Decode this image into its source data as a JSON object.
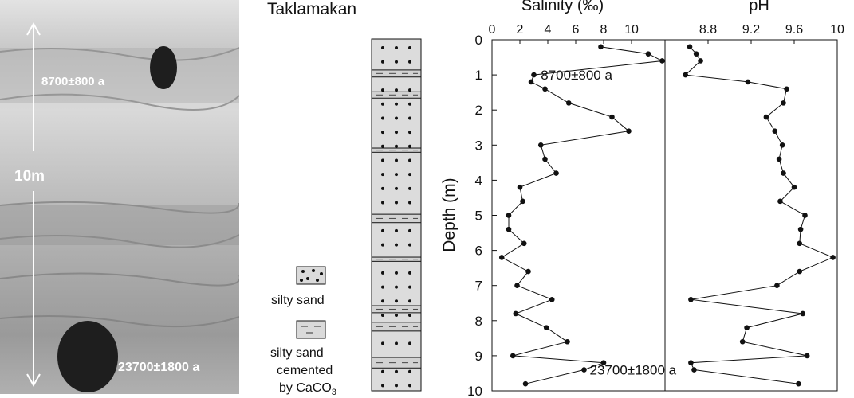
{
  "photo": {
    "label_top": "8700±800 a",
    "label_bottom": "23700±1800 a",
    "scale_label": "10m"
  },
  "site": {
    "title": "Taklamakan"
  },
  "legend": {
    "silty_sand": "silty sand",
    "cemented_line1": "silty sand",
    "cemented_line2": "cemented",
    "cemented_line3_prefix": "by CaCO",
    "cemented_line3_sub": "3"
  },
  "stratigraphy": {
    "depth_range": [
      0,
      10
    ],
    "cemented_layers": [
      [
        0.88,
        1.08
      ],
      [
        1.5,
        1.68
      ],
      [
        3.1,
        3.22
      ],
      [
        4.98,
        5.22
      ],
      [
        6.2,
        6.32
      ],
      [
        7.58,
        7.78
      ],
      [
        8.05,
        8.3
      ],
      [
        9.05,
        9.35
      ]
    ]
  },
  "chart_data": [
    {
      "type": "line",
      "title": "Salinity (‰)",
      "ylabel": "Depth (m)",
      "xlim": [
        0,
        12.4
      ],
      "ylim": [
        10,
        0
      ],
      "x_ticks": [
        0,
        2,
        4,
        6,
        8,
        10
      ],
      "y_ticks": [
        0,
        1,
        2,
        3,
        4,
        5,
        6,
        7,
        8,
        9,
        10
      ],
      "points": [
        {
          "x": 7.8,
          "y": 0.2
        },
        {
          "x": 11.2,
          "y": 0.4
        },
        {
          "x": 12.2,
          "y": 0.6
        },
        {
          "x": 3.0,
          "y": 1.0
        },
        {
          "x": 2.8,
          "y": 1.2
        },
        {
          "x": 3.8,
          "y": 1.4
        },
        {
          "x": 5.5,
          "y": 1.8
        },
        {
          "x": 8.6,
          "y": 2.2
        },
        {
          "x": 9.8,
          "y": 2.6
        },
        {
          "x": 3.5,
          "y": 3.0
        },
        {
          "x": 3.8,
          "y": 3.4
        },
        {
          "x": 4.6,
          "y": 3.8
        },
        {
          "x": 2.0,
          "y": 4.2
        },
        {
          "x": 2.2,
          "y": 4.6
        },
        {
          "x": 1.2,
          "y": 5.0
        },
        {
          "x": 1.2,
          "y": 5.4
        },
        {
          "x": 2.3,
          "y": 5.8
        },
        {
          "x": 0.7,
          "y": 6.2
        },
        {
          "x": 2.6,
          "y": 6.6
        },
        {
          "x": 1.8,
          "y": 7.0
        },
        {
          "x": 4.3,
          "y": 7.4
        },
        {
          "x": 1.7,
          "y": 7.8
        },
        {
          "x": 3.9,
          "y": 8.2
        },
        {
          "x": 5.4,
          "y": 8.6
        },
        {
          "x": 1.5,
          "y": 9.0
        },
        {
          "x": 8.0,
          "y": 9.2
        },
        {
          "x": 6.6,
          "y": 9.4
        },
        {
          "x": 2.4,
          "y": 9.8
        }
      ],
      "annotations": [
        {
          "text": "8700±800 a",
          "x": 3.5,
          "y": 1.2
        },
        {
          "text": "23700±1800 a",
          "x": 7.0,
          "y": 9.6
        }
      ]
    },
    {
      "type": "line",
      "title": "pH",
      "xlim": [
        8.4,
        10.0
      ],
      "ylim": [
        10,
        0
      ],
      "x_ticks": [
        8.8,
        9.2,
        9.6,
        10
      ],
      "points": [
        {
          "x": 8.63,
          "y": 0.2
        },
        {
          "x": 8.69,
          "y": 0.4
        },
        {
          "x": 8.73,
          "y": 0.6
        },
        {
          "x": 8.59,
          "y": 1.0
        },
        {
          "x": 9.17,
          "y": 1.2
        },
        {
          "x": 9.53,
          "y": 1.4
        },
        {
          "x": 9.5,
          "y": 1.8
        },
        {
          "x": 9.34,
          "y": 2.2
        },
        {
          "x": 9.42,
          "y": 2.6
        },
        {
          "x": 9.49,
          "y": 3.0
        },
        {
          "x": 9.46,
          "y": 3.4
        },
        {
          "x": 9.5,
          "y": 3.8
        },
        {
          "x": 9.6,
          "y": 4.2
        },
        {
          "x": 9.47,
          "y": 4.6
        },
        {
          "x": 9.7,
          "y": 5.0
        },
        {
          "x": 9.66,
          "y": 5.4
        },
        {
          "x": 9.65,
          "y": 5.8
        },
        {
          "x": 9.96,
          "y": 6.2
        },
        {
          "x": 9.65,
          "y": 6.6
        },
        {
          "x": 9.44,
          "y": 7.0
        },
        {
          "x": 8.64,
          "y": 7.4
        },
        {
          "x": 9.68,
          "y": 7.8
        },
        {
          "x": 9.16,
          "y": 8.2
        },
        {
          "x": 9.12,
          "y": 8.6
        },
        {
          "x": 9.72,
          "y": 9.0
        },
        {
          "x": 8.64,
          "y": 9.2
        },
        {
          "x": 8.67,
          "y": 9.4
        },
        {
          "x": 9.64,
          "y": 9.8
        }
      ]
    }
  ]
}
